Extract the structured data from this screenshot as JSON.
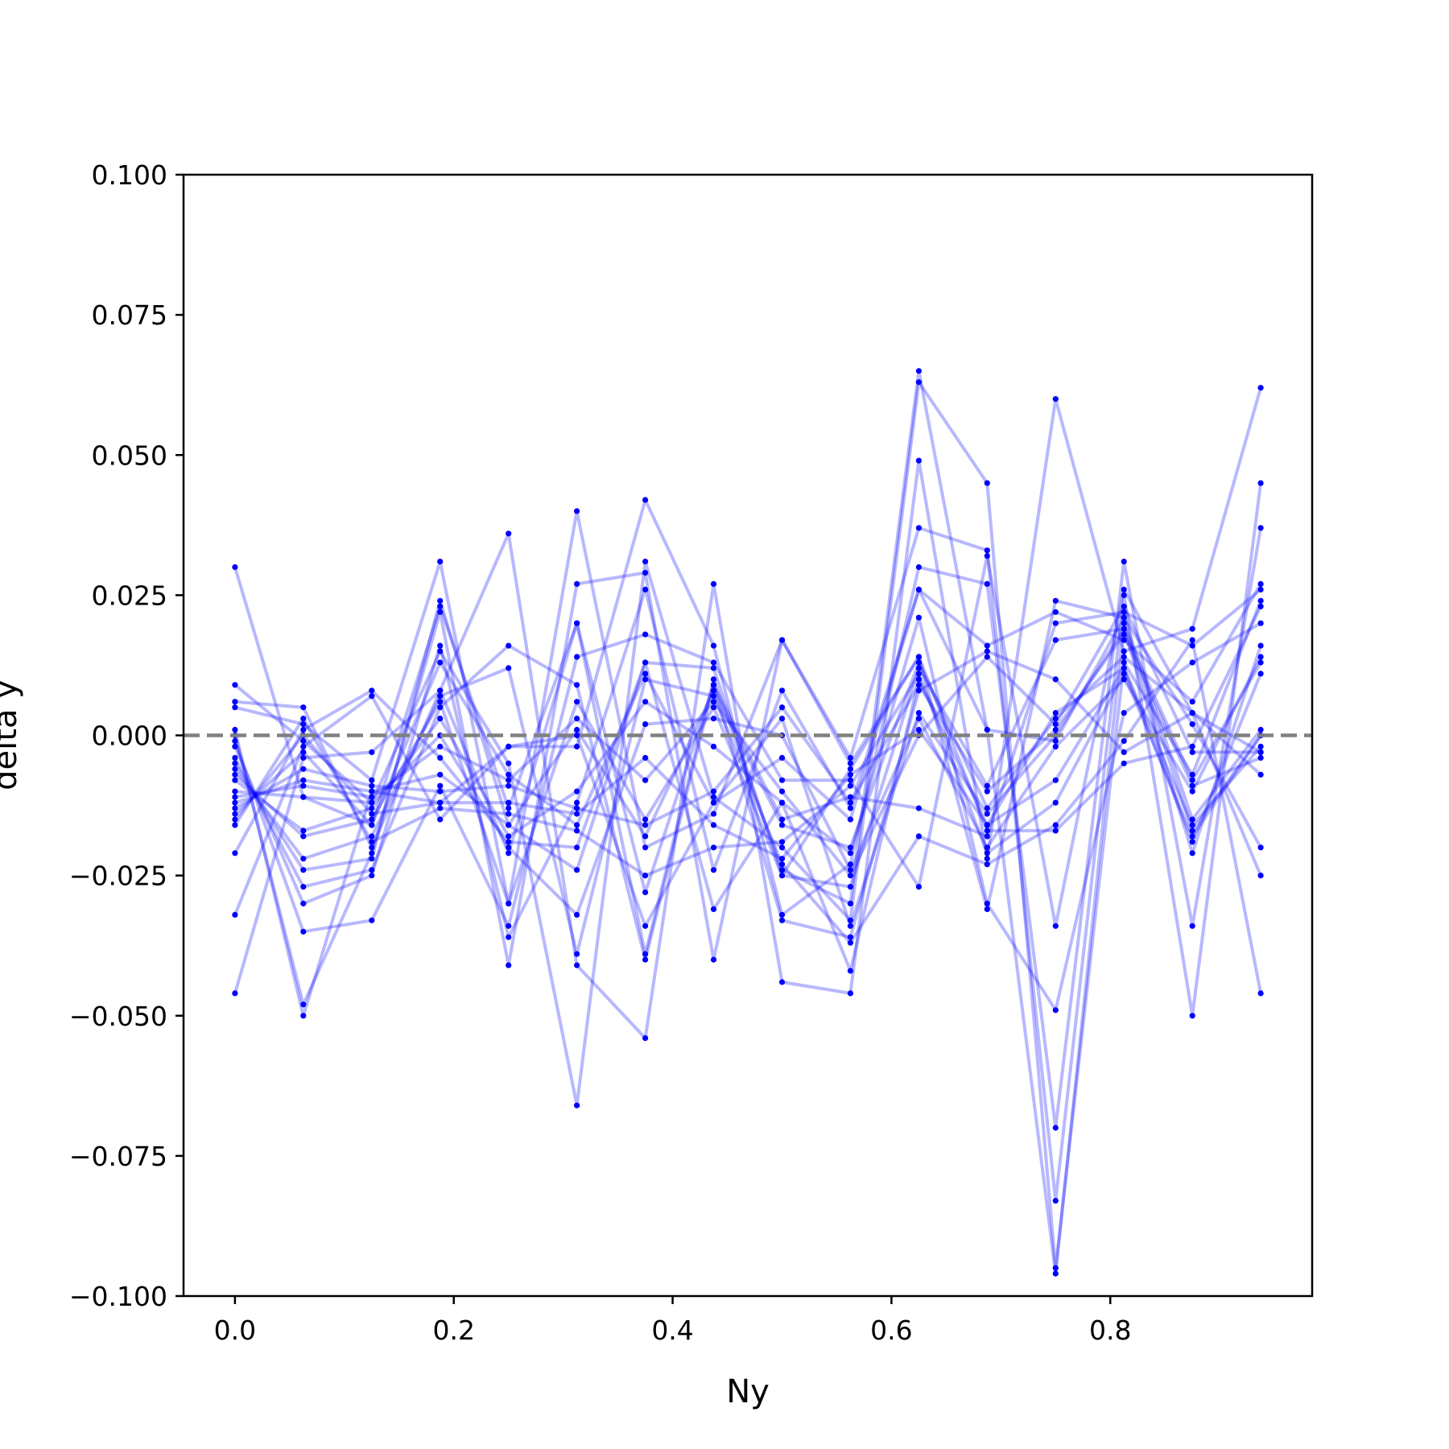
{
  "chart_data": {
    "type": "line",
    "xlabel": "Ny",
    "ylabel": "delta y",
    "xlim": [
      -0.047,
      0.9845
    ],
    "ylim": [
      -0.1,
      0.1
    ],
    "x_ticks": [
      0.0,
      0.2,
      0.4,
      0.6,
      0.8
    ],
    "x_tick_labels": [
      "0.0",
      "0.2",
      "0.4",
      "0.6",
      "0.8"
    ],
    "y_ticks": [
      -0.1,
      -0.075,
      -0.05,
      -0.025,
      0.0,
      0.025,
      0.05,
      0.075,
      0.1
    ],
    "y_tick_labels": [
      "−0.100",
      "−0.075",
      "−0.050",
      "−0.025",
      "0.000",
      "0.025",
      "0.050",
      "0.075",
      "0.100"
    ],
    "reference_line": {
      "y": 0.0,
      "style": "dashed",
      "color": "#808080"
    },
    "series_color": "#0000ff",
    "line_alpha": 0.28,
    "grid": false,
    "x": [
      0.0,
      0.0625,
      0.125,
      0.1875,
      0.25,
      0.3125,
      0.375,
      0.4375,
      0.5,
      0.5625,
      0.625,
      0.6875,
      0.75,
      0.8125,
      0.875,
      0.9375
    ],
    "series": [
      {
        "values": [
          0.03,
          -0.011,
          -0.016,
          0.023,
          -0.013,
          0.02,
          -0.039,
          0.01,
          -0.024,
          -0.03,
          0.065,
          0.001,
          -0.096,
          0.02,
          -0.017,
          0.0
        ]
      },
      {
        "values": [
          0.009,
          -0.001,
          -0.012,
          0.015,
          -0.005,
          -0.066,
          0.031,
          -0.011,
          -0.02,
          -0.033,
          0.063,
          0.045,
          -0.095,
          0.013,
          -0.007,
          0.024
        ]
      },
      {
        "values": [
          0.006,
          0.005,
          -0.02,
          0.008,
          0.036,
          -0.041,
          -0.054,
          0.027,
          -0.044,
          -0.046,
          0.049,
          -0.022,
          0.06,
          0.015,
          0.019,
          0.062
        ]
      },
      {
        "values": [
          0.005,
          0.002,
          -0.008,
          0.031,
          -0.03,
          0.04,
          -0.02,
          -0.014,
          0.017,
          -0.004,
          0.037,
          0.033,
          -0.083,
          0.025,
          -0.05,
          0.045
        ]
      },
      {
        "values": [
          0.001,
          -0.05,
          -0.01,
          -0.012,
          -0.002,
          -0.002,
          0.042,
          0.016,
          -0.032,
          -0.023,
          0.03,
          0.027,
          -0.07,
          0.031,
          -0.034,
          0.037
        ]
      },
      {
        "values": [
          0.0,
          -0.048,
          -0.021,
          0.022,
          -0.041,
          0.027,
          0.029,
          -0.04,
          0.017,
          -0.005,
          0.014,
          -0.031,
          0.024,
          0.021,
          0.002,
          -0.02
        ]
      },
      {
        "values": [
          -0.001,
          -0.035,
          -0.033,
          -0.009,
          -0.034,
          0.014,
          0.018,
          0.013,
          -0.008,
          -0.008,
          -0.027,
          0.032,
          -0.034,
          0.026,
          0.004,
          -0.025
        ]
      },
      {
        "values": [
          -0.002,
          -0.03,
          -0.025,
          0.016,
          -0.036,
          -0.012,
          0.026,
          -0.024,
          0.008,
          -0.013,
          0.026,
          0.016,
          0.022,
          0.017,
          0.006,
          0.027
        ]
      },
      {
        "values": [
          -0.004,
          -0.027,
          -0.024,
          0.005,
          0.016,
          0.009,
          -0.04,
          0.009,
          -0.015,
          -0.011,
          -0.013,
          -0.018,
          0.02,
          0.022,
          0.016,
          0.026
        ]
      },
      {
        "values": [
          -0.005,
          -0.024,
          -0.022,
          0.024,
          -0.016,
          -0.024,
          0.013,
          -0.031,
          -0.012,
          -0.021,
          0.021,
          -0.03,
          -0.049,
          0.004,
          0.013,
          0.02
        ]
      },
      {
        "values": [
          -0.006,
          -0.022,
          -0.018,
          0.007,
          0.012,
          -0.039,
          0.01,
          0.007,
          -0.023,
          -0.037,
          -0.018,
          -0.023,
          -0.016,
          -0.001,
          0.017,
          -0.046
        ]
      },
      {
        "values": [
          -0.007,
          -0.018,
          -0.015,
          0.006,
          -0.03,
          0.006,
          -0.015,
          0.005,
          -0.025,
          -0.027,
          0.012,
          -0.009,
          0.017,
          0.019,
          -0.021,
          0.016
        ]
      },
      {
        "values": [
          -0.008,
          -0.017,
          -0.013,
          0.003,
          -0.018,
          -0.01,
          0.006,
          -0.002,
          -0.012,
          -0.042,
          0.01,
          -0.016,
          0.004,
          0.012,
          -0.019,
          0.011
        ]
      },
      {
        "values": [
          -0.01,
          -0.011,
          -0.012,
          0.0,
          -0.02,
          -0.032,
          0.002,
          0.003,
          0.0,
          -0.024,
          0.003,
          -0.02,
          -0.002,
          0.01,
          -0.01,
          0.014
        ]
      },
      {
        "values": [
          -0.011,
          -0.009,
          -0.011,
          -0.002,
          -0.008,
          0.003,
          -0.008,
          0.006,
          -0.01,
          -0.025,
          0.0,
          0.014,
          0.002,
          0.023,
          -0.003,
          -0.003
        ]
      },
      {
        "values": [
          -0.012,
          -0.008,
          -0.01,
          -0.007,
          -0.016,
          0.001,
          -0.018,
          0.008,
          -0.016,
          -0.02,
          0.013,
          -0.013,
          0.003,
          0.014,
          0.004,
          -0.007
        ]
      },
      {
        "values": [
          -0.013,
          -0.006,
          -0.009,
          -0.01,
          -0.009,
          -0.013,
          -0.016,
          -0.01,
          0.005,
          -0.012,
          0.009,
          -0.01,
          0.001,
          0.018,
          -0.009,
          -0.004
        ]
      },
      {
        "values": [
          -0.014,
          -0.003,
          -0.016,
          0.013,
          -0.007,
          -0.016,
          0.011,
          -0.012,
          -0.004,
          -0.015,
          0.026,
          0.001,
          -0.001,
          0.021,
          -0.015,
          0.001
        ]
      },
      {
        "values": [
          -0.015,
          0.0,
          -0.014,
          -0.012,
          -0.012,
          -0.014,
          -0.004,
          -0.016,
          -0.022,
          -0.007,
          0.001,
          -0.016,
          -0.008,
          0.012,
          -0.016,
          -0.002
        ]
      },
      {
        "values": [
          -0.016,
          0.003,
          -0.019,
          -0.013,
          -0.014,
          -0.017,
          -0.025,
          -0.02,
          -0.019,
          -0.009,
          0.011,
          -0.021,
          -0.012,
          0.011,
          -0.018,
          0.0
        ]
      },
      {
        "values": [
          -0.021,
          0.001,
          0.008,
          -0.004,
          -0.019,
          -0.02,
          0.013,
          0.012,
          -0.025,
          -0.006,
          0.014,
          -0.017,
          -0.017,
          -0.005,
          -0.002,
          0.023
        ]
      },
      {
        "values": [
          -0.032,
          -0.002,
          0.007,
          -0.015,
          -0.002,
          0.0,
          -0.034,
          -0.012,
          0.003,
          -0.034,
          0.004,
          -0.014,
          0.0,
          0.019,
          -0.008,
          0.013
        ]
      },
      {
        "values": [
          -0.046,
          -0.004,
          -0.003,
          0.008,
          -0.021,
          0.02,
          -0.028,
          0.009,
          -0.033,
          -0.036,
          0.008,
          0.015,
          0.01,
          -0.003,
          0.004,
          -0.003
        ]
      }
    ]
  }
}
